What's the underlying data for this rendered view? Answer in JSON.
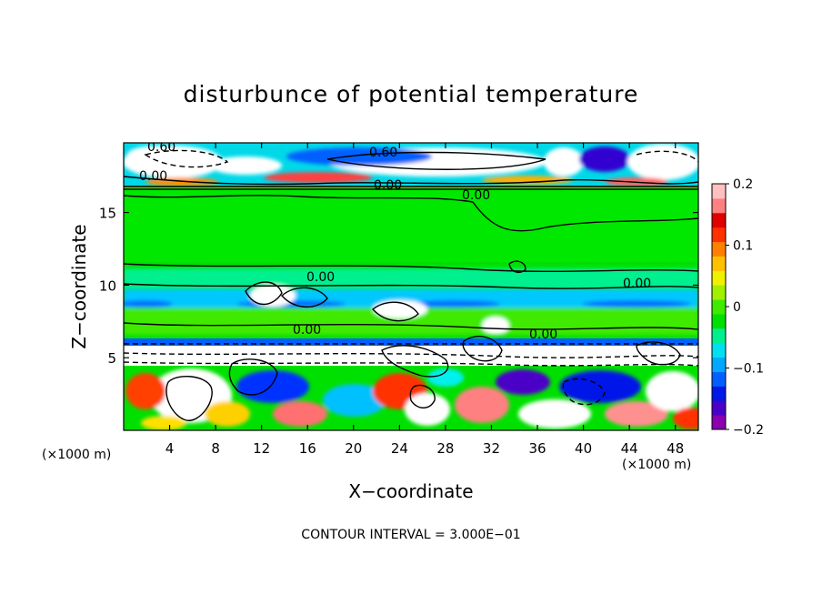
{
  "chart_data": {
    "type": "heatmap",
    "title": "disturbunce of potential temperature",
    "xlabel": "X−coordinate",
    "ylabel": "Z−coordinate",
    "x_unit": "(×1000 m)",
    "x_unit_right": "(×1000 m)",
    "xlim": [
      0,
      50
    ],
    "ylim": [
      0,
      19.8
    ],
    "x_ticks": [
      4,
      8,
      12,
      16,
      20,
      24,
      28,
      32,
      36,
      40,
      44,
      48
    ],
    "x_tick_labels": [
      "4",
      "8",
      "12",
      "16",
      "20",
      "24",
      "28",
      "32",
      "36",
      "40",
      "44",
      "48"
    ],
    "y_ticks": [
      5,
      10,
      15
    ],
    "y_tick_labels": [
      "5",
      "10",
      "15"
    ],
    "colorbar": {
      "range": [
        -0.2,
        0.2
      ],
      "ticks": [
        0.2,
        0.1,
        0,
        -0.1,
        -0.2
      ],
      "tick_labels": [
        "0.2",
        "0.1",
        "0",
        "−0.1",
        "−0.2"
      ],
      "colors": [
        "#8a00b0",
        "#4b00c8",
        "#0018e8",
        "#0060ff",
        "#00a8ff",
        "#00e0f0",
        "#00f090",
        "#00e000",
        "#40ea00",
        "#a0f000",
        "#f0f000",
        "#ffc000",
        "#ff8000",
        "#ff3000",
        "#e00000",
        "#ff8080",
        "#ffc0c0"
      ]
    },
    "contour_labels": [
      {
        "text": "0.60",
        "x": 2.5,
        "y": 19.1
      },
      {
        "text": "0.60",
        "x": 22.2,
        "y": 19.0
      },
      {
        "text": "0.00",
        "x": 1.5,
        "y": 17.5
      },
      {
        "text": "0.00",
        "x": 23.0,
        "y": 16.9
      },
      {
        "text": "0.00",
        "x": 32.0,
        "y": 16.1
      },
      {
        "text": "0.00",
        "x": 44.5,
        "y": 10.1
      },
      {
        "text": "0.00",
        "x": 16.5,
        "y": 10.5
      },
      {
        "text": "0.00",
        "x": 16.5,
        "y": 6.8
      },
      {
        "text": "0.00",
        "x": 36.5,
        "y": 6.6
      }
    ],
    "footer": "CONTOUR INTERVAL = 3.000E−01"
  }
}
